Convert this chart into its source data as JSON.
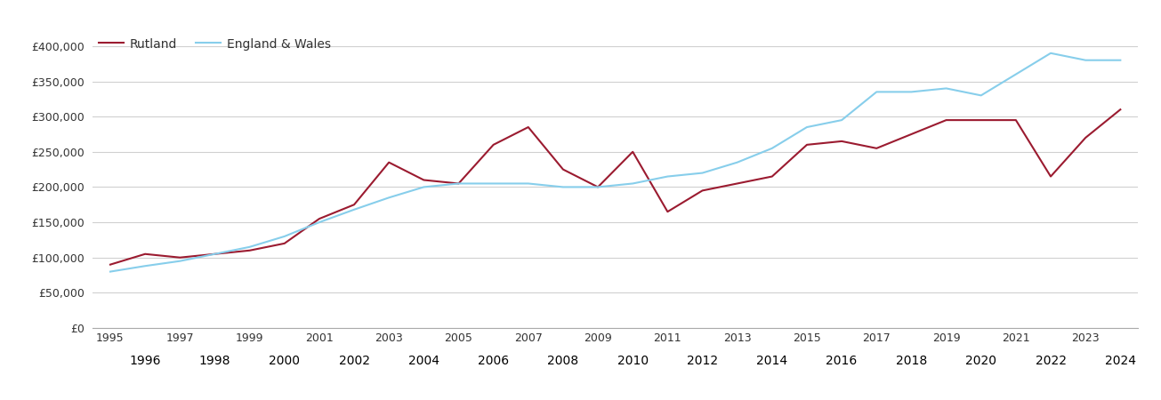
{
  "years": [
    1995,
    1996,
    1997,
    1998,
    1999,
    2000,
    2001,
    2002,
    2003,
    2004,
    2005,
    2006,
    2007,
    2008,
    2009,
    2010,
    2011,
    2012,
    2013,
    2014,
    2015,
    2016,
    2017,
    2018,
    2019,
    2020,
    2021,
    2022,
    2023,
    2024
  ],
  "rutland": [
    90000,
    105000,
    100000,
    105000,
    110000,
    120000,
    155000,
    175000,
    235000,
    210000,
    205000,
    260000,
    285000,
    225000,
    200000,
    250000,
    165000,
    195000,
    205000,
    215000,
    260000,
    265000,
    255000,
    275000,
    295000,
    295000,
    295000,
    215000,
    270000,
    310000
  ],
  "england_wales": [
    80000,
    88000,
    95000,
    105000,
    115000,
    130000,
    150000,
    168000,
    185000,
    200000,
    205000,
    205000,
    205000,
    200000,
    200000,
    205000,
    215000,
    220000,
    235000,
    255000,
    285000,
    295000,
    335000,
    335000,
    340000,
    330000,
    360000,
    390000,
    380000,
    380000
  ],
  "rutland_color": "#9B1B30",
  "england_wales_color": "#87CEEB",
  "background_color": "#ffffff",
  "grid_color": "#d0d0d0",
  "ylim": [
    0,
    420000
  ],
  "ytick_values": [
    0,
    50000,
    100000,
    150000,
    200000,
    250000,
    300000,
    350000,
    400000
  ],
  "xlabel_odd": [
    1995,
    1997,
    1999,
    2001,
    2003,
    2005,
    2007,
    2009,
    2011,
    2013,
    2015,
    2017,
    2019,
    2021,
    2023
  ],
  "xlabel_even": [
    1996,
    1998,
    2000,
    2002,
    2004,
    2006,
    2008,
    2010,
    2012,
    2014,
    2016,
    2018,
    2020,
    2022,
    2024
  ],
  "legend_labels": [
    "Rutland",
    "England & Wales"
  ],
  "line_width": 1.5,
  "tick_fontsize": 9,
  "legend_fontsize": 10
}
